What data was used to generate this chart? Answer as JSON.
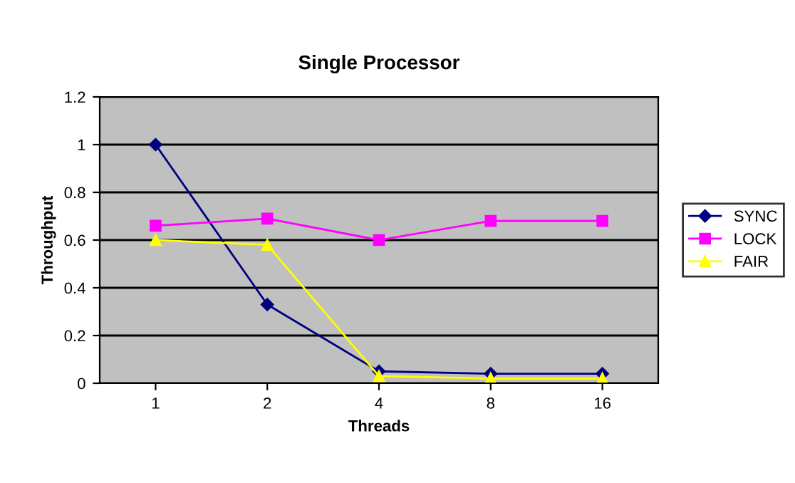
{
  "chart_data": {
    "type": "line",
    "title": "Single Processor",
    "xlabel": "Threads",
    "ylabel": "Throughput",
    "categories": [
      "1",
      "2",
      "4",
      "8",
      "16"
    ],
    "series": [
      {
        "name": "SYNC",
        "color": "#000080",
        "marker": "diamond",
        "values": [
          1,
          0.33,
          0.05,
          0.04,
          0.04
        ]
      },
      {
        "name": "LOCK",
        "color": "#ff00ff",
        "marker": "square",
        "values": [
          0.66,
          0.69,
          0.6,
          0.68,
          0.68
        ]
      },
      {
        "name": "FAIR",
        "color": "#ffff00",
        "marker": "triangle",
        "values": [
          0.6,
          0.58,
          0.03,
          0.02,
          0.02
        ]
      }
    ],
    "ylim": [
      0,
      1.2
    ],
    "yticks": [
      0,
      0.2,
      0.4,
      0.6,
      0.8,
      1,
      1.2
    ],
    "grid": "y",
    "legend": "right"
  }
}
